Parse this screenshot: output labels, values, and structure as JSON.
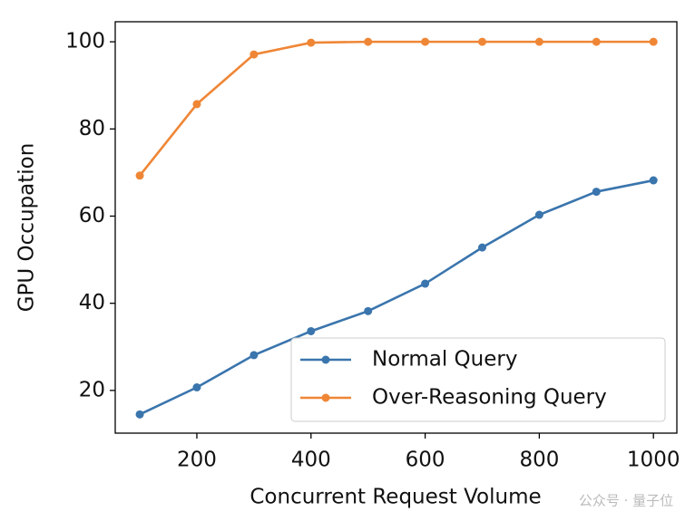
{
  "chart_data": {
    "type": "line",
    "xlabel": "Concurrent Request Volume",
    "ylabel": "GPU Occupation",
    "x": [
      100,
      200,
      300,
      400,
      500,
      600,
      700,
      800,
      900,
      1000
    ],
    "series": [
      {
        "name": "Normal Query",
        "color": "#3a75ad",
        "values": [
          14.5,
          20.7,
          28.1,
          33.6,
          38.2,
          44.5,
          52.8,
          60.3,
          65.6,
          68.2
        ]
      },
      {
        "name": "Over-Reasoning Query",
        "color": "#ef8636",
        "values": [
          69.3,
          85.7,
          97.1,
          99.8,
          100,
          100,
          100,
          100,
          100,
          100
        ]
      }
    ],
    "xlim": [
      57,
      1041
    ],
    "ylim": [
      10.2,
      104.6
    ],
    "xticks": [
      200,
      400,
      600,
      800,
      1000
    ],
    "yticks": [
      20,
      40,
      60,
      80,
      100
    ],
    "legend": "lower right",
    "watermark": "公众号 · 量子位"
  }
}
